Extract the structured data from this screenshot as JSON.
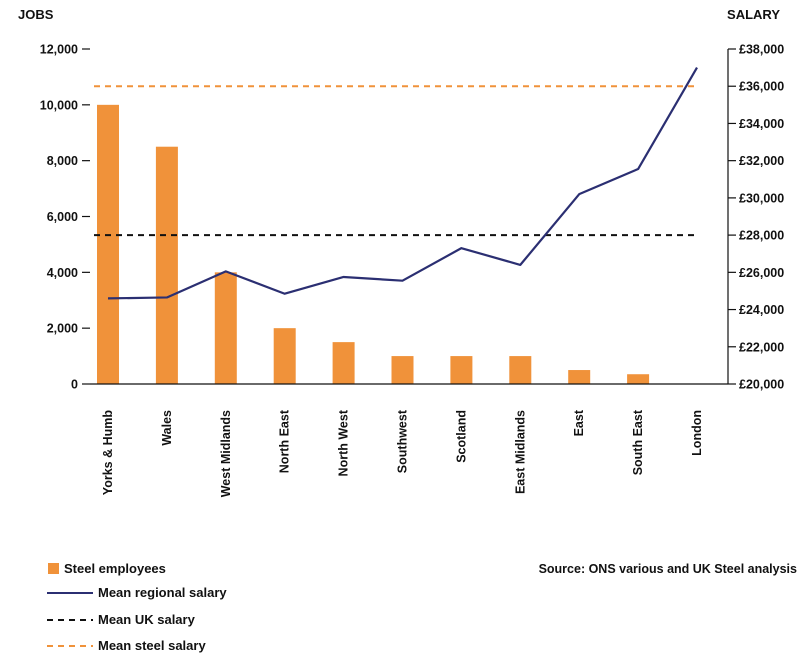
{
  "chart_data": {
    "type": "bar",
    "left_axis_title": "JOBS",
    "right_axis_title": "SALARY",
    "categories": [
      "Yorks & Humb",
      "Wales",
      "West Midlands",
      "North East",
      "North West",
      "Southwest",
      "Scotland",
      "East Midlands",
      "East",
      "South East",
      "London"
    ],
    "series": [
      {
        "name": "Steel employees",
        "type": "bar",
        "axis": "left",
        "color": "#f0923a",
        "values": [
          10000,
          8500,
          4000,
          2000,
          1500,
          1000,
          1000,
          1000,
          500,
          350,
          0
        ]
      },
      {
        "name": "Mean regional salary",
        "type": "line",
        "axis": "right",
        "color": "#2b2f72",
        "values": [
          24600,
          24650,
          26050,
          24850,
          25750,
          25550,
          27300,
          26400,
          30200,
          31550,
          37000
        ]
      },
      {
        "name": "Mean UK salary",
        "type": "reference-line",
        "axis": "right",
        "color": "#111111",
        "dash": true,
        "value": 28000
      },
      {
        "name": "Mean steel salary",
        "type": "reference-line",
        "axis": "right",
        "color": "#f0923a",
        "dash": true,
        "value": 36000
      }
    ],
    "left_axis": {
      "min": 0,
      "max": 12000,
      "ticks": [
        0,
        2000,
        4000,
        6000,
        8000,
        10000,
        12000
      ],
      "tick_labels": [
        "0",
        "2,000",
        "4,000",
        "6,000",
        "8,000",
        "10,000",
        "12,000"
      ]
    },
    "right_axis": {
      "min": 20000,
      "max": 38000,
      "ticks": [
        20000,
        22000,
        24000,
        26000,
        28000,
        30000,
        32000,
        34000,
        36000,
        38000
      ],
      "tick_labels": [
        "£20,000",
        "£22,000",
        "£24,000",
        "£26,000",
        "£28,000",
        "£30,000",
        "£32,000",
        "£34,000",
        "£36,000",
        "£38,000"
      ]
    },
    "grid": false,
    "source": "Source: ONS various and UK Steel analysis",
    "legend_position": "bottom-left"
  }
}
